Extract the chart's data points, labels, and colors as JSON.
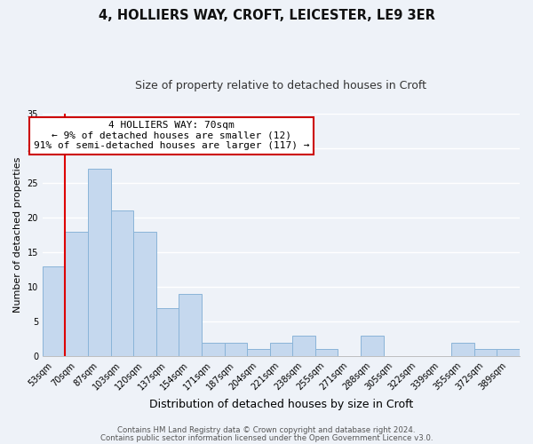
{
  "title": "4, HOLLIERS WAY, CROFT, LEICESTER, LE9 3ER",
  "subtitle": "Size of property relative to detached houses in Croft",
  "xlabel": "Distribution of detached houses by size in Croft",
  "ylabel": "Number of detached properties",
  "footnote1": "Contains HM Land Registry data © Crown copyright and database right 2024.",
  "footnote2": "Contains public sector information licensed under the Open Government Licence v3.0.",
  "annotation_line1": "4 HOLLIERS WAY: 70sqm",
  "annotation_line2": "← 9% of detached houses are smaller (12)",
  "annotation_line3": "91% of semi-detached houses are larger (117) →",
  "bar_labels": [
    "53sqm",
    "70sqm",
    "87sqm",
    "103sqm",
    "120sqm",
    "137sqm",
    "154sqm",
    "171sqm",
    "187sqm",
    "204sqm",
    "221sqm",
    "238sqm",
    "255sqm",
    "271sqm",
    "288sqm",
    "305sqm",
    "322sqm",
    "339sqm",
    "355sqm",
    "372sqm",
    "389sqm"
  ],
  "bar_values": [
    13,
    18,
    27,
    21,
    18,
    7,
    9,
    2,
    2,
    1,
    2,
    3,
    1,
    0,
    3,
    0,
    0,
    0,
    2,
    1,
    1
  ],
  "bar_color": "#c5d8ee",
  "bar_edge_color": "#8ab4d8",
  "highlight_bar_index": 1,
  "highlight_color": "#dd0000",
  "ylim": [
    0,
    35
  ],
  "yticks": [
    0,
    5,
    10,
    15,
    20,
    25,
    30,
    35
  ],
  "bg_color": "#eef2f8",
  "grid_color": "#ffffff",
  "annotation_box_color": "#ffffff",
  "annotation_box_edge": "#cc0000",
  "title_fontsize": 10.5,
  "subtitle_fontsize": 9,
  "xlabel_fontsize": 9,
  "ylabel_fontsize": 8,
  "tick_fontsize": 7,
  "annotation_fontsize": 8,
  "footnote_fontsize": 6.2
}
